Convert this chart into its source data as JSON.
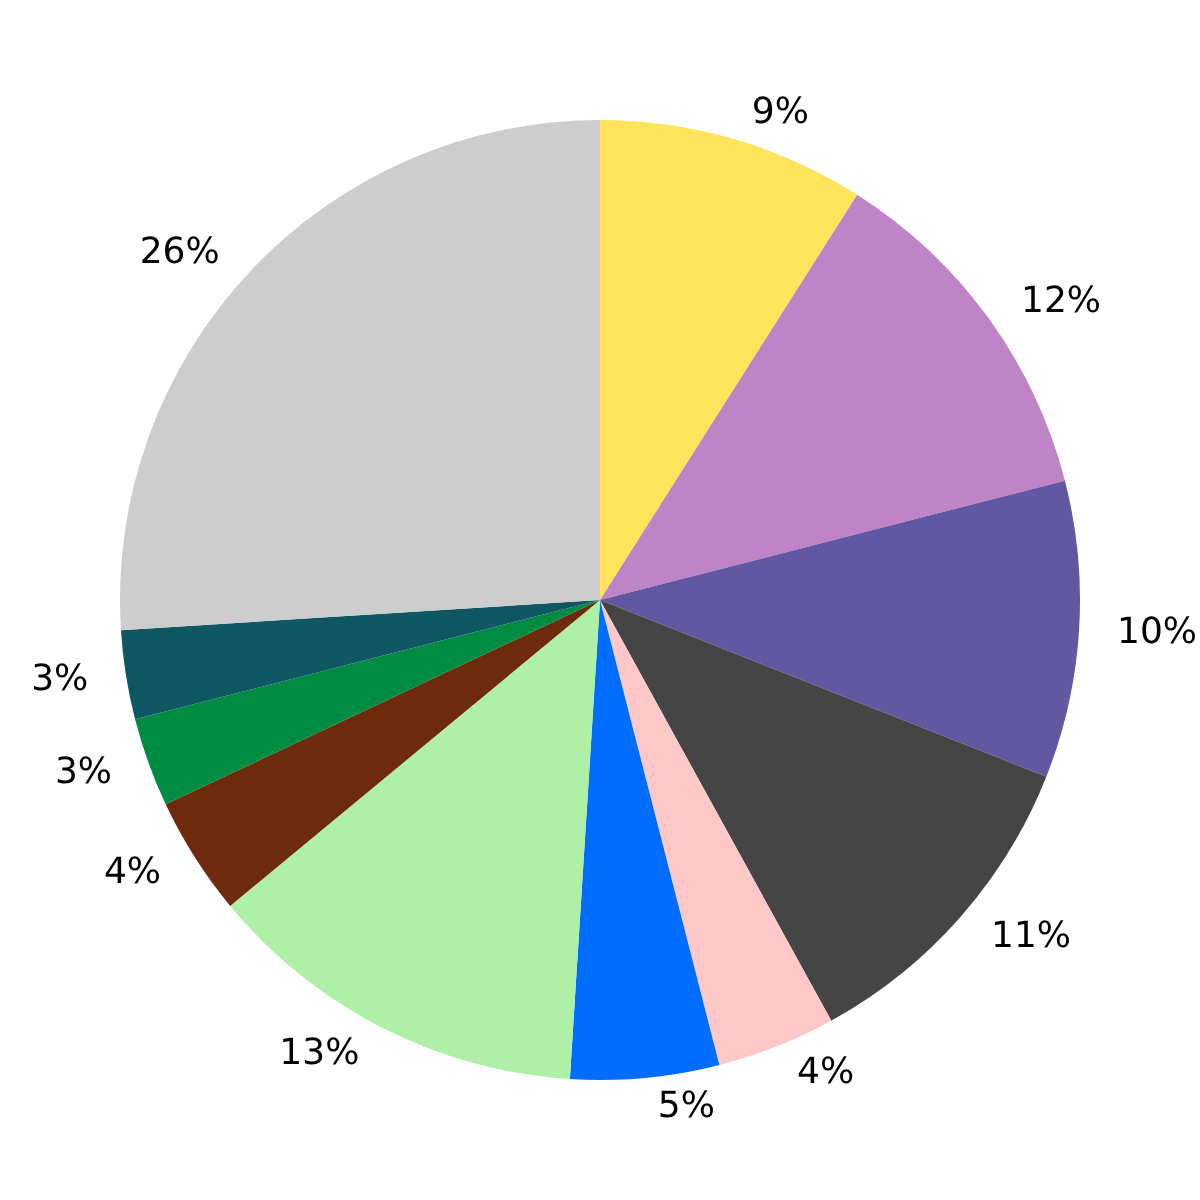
{
  "chart_data": {
    "type": "pie",
    "categories": [
      null,
      null,
      null,
      null,
      null,
      null,
      null,
      null,
      null,
      null,
      null
    ],
    "values": [
      9,
      12,
      10,
      11,
      4,
      5,
      13,
      4,
      3,
      3,
      26
    ],
    "value_labels": [
      "9%",
      "12%",
      "10%",
      "11%",
      "4%",
      "5%",
      "13%",
      "4%",
      "3%",
      "3%",
      "26%"
    ],
    "colors": [
      "#ffe45c",
      "#bf83c8",
      "#6257a1",
      "#454545",
      "#fec8c9",
      "#006dff",
      "#aef0a5",
      "#6d2a0d",
      "#008b43",
      "#0e5763",
      "#cdcdcd"
    ]
  }
}
